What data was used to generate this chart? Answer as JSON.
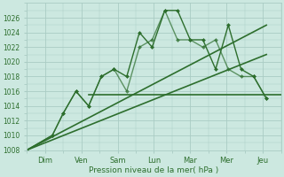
{
  "xlabel": "Pression niveau de la mer( hPa )",
  "background_color": "#cce8e0",
  "grid_color": "#aaccc4",
  "line_color": "#2d6e2d",
  "xlim": [
    0,
    7.0
  ],
  "ylim": [
    1008,
    1028
  ],
  "yticks": [
    1008,
    1010,
    1012,
    1014,
    1016,
    1018,
    1020,
    1022,
    1024,
    1026
  ],
  "xtick_labels": [
    "Dim",
    "Ven",
    "Sam",
    "Lun",
    "Mar",
    "Mer",
    "Jeu"
  ],
  "xtick_positions": [
    0.5,
    1.5,
    2.5,
    3.5,
    4.5,
    5.5,
    6.5
  ],
  "series": [
    {
      "x": [
        0.0,
        0.7,
        1.0,
        1.35,
        1.7,
        2.05,
        2.4,
        2.75,
        3.1,
        3.45,
        3.8,
        4.15,
        4.5,
        4.85,
        5.2,
        5.55,
        5.9,
        6.25,
        6.6
      ],
      "y": [
        1008,
        1010,
        1013,
        1016,
        1014,
        1018,
        1019,
        1018,
        1024,
        1022,
        1027,
        1027,
        1023,
        1023,
        1019,
        1025,
        1019,
        1018,
        1015
      ],
      "style": "-",
      "marker": "D",
      "markersize": 2.0,
      "linewidth": 1.0
    },
    {
      "x": [
        0.0,
        0.7,
        1.0,
        1.35,
        1.7,
        2.05,
        2.4,
        2.75,
        3.1,
        3.45,
        3.8,
        4.15,
        4.5,
        4.85,
        5.2,
        5.55,
        5.9,
        6.25,
        6.6
      ],
      "y": [
        1008,
        1010,
        1013,
        1016,
        1014,
        1018,
        1019,
        1016,
        1022,
        1023,
        1027,
        1023,
        1023,
        1022,
        1023,
        1019,
        1018,
        1018,
        1015
      ],
      "style": "-",
      "marker": "D",
      "markersize": 2.0,
      "linewidth": 1.0,
      "alpha": 0.7
    },
    {
      "x": [
        0.0,
        6.6
      ],
      "y": [
        1008,
        1025
      ],
      "style": "-",
      "marker": null,
      "markersize": 0,
      "linewidth": 1.2,
      "alpha": 1.0
    },
    {
      "x": [
        0.0,
        6.6
      ],
      "y": [
        1008,
        1021
      ],
      "style": "-",
      "marker": null,
      "markersize": 0,
      "linewidth": 1.2,
      "alpha": 1.0
    },
    {
      "x": [
        1.7,
        7.0
      ],
      "y": [
        1015.5,
        1015.5
      ],
      "style": "-",
      "marker": null,
      "markersize": 0,
      "linewidth": 1.2,
      "alpha": 1.0
    }
  ]
}
